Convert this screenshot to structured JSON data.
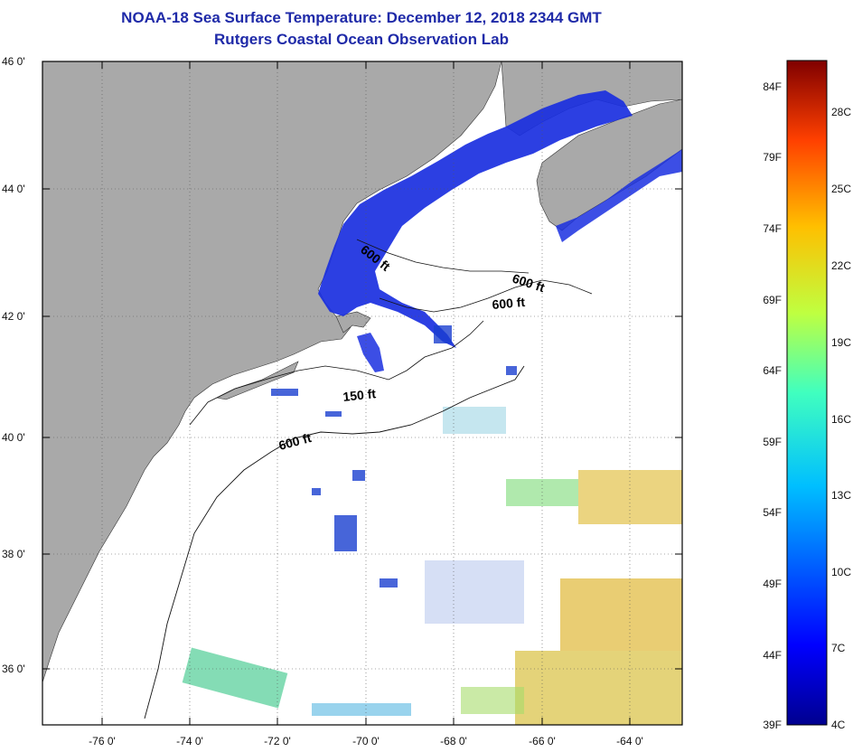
{
  "header": {
    "title": "NOAA-18 Sea Surface Temperature:  December 12, 2018 2344 GMT",
    "subtitle": "Rutgers Coastal Ocean Observation Lab"
  },
  "map": {
    "lat_labels": [
      "46 0'",
      "44 0'",
      "42 0'",
      "40 0'",
      "38 0'",
      "36 0'"
    ],
    "lon_labels": [
      "-76 0'",
      "-74 0'",
      "-72 0'",
      "-70 0'",
      "-68 0'",
      "-66 0'",
      "-64 0'"
    ],
    "contour_labels": [
      "600 ft",
      "600 ft",
      "600 ft",
      "150 ft",
      "600 ft"
    ],
    "colors": {
      "land": "#a9a9a9",
      "cold": "#1a2fe0",
      "ocean": "#ffffff"
    }
  },
  "colorbar": {
    "fahrenheit": [
      "84F",
      "79F",
      "74F",
      "69F",
      "64F",
      "59F",
      "54F",
      "49F",
      "44F",
      "39F"
    ],
    "celsius": [
      "28C",
      "25C",
      "22C",
      "19C",
      "16C",
      "13C",
      "10C",
      "7C",
      "4C"
    ]
  }
}
